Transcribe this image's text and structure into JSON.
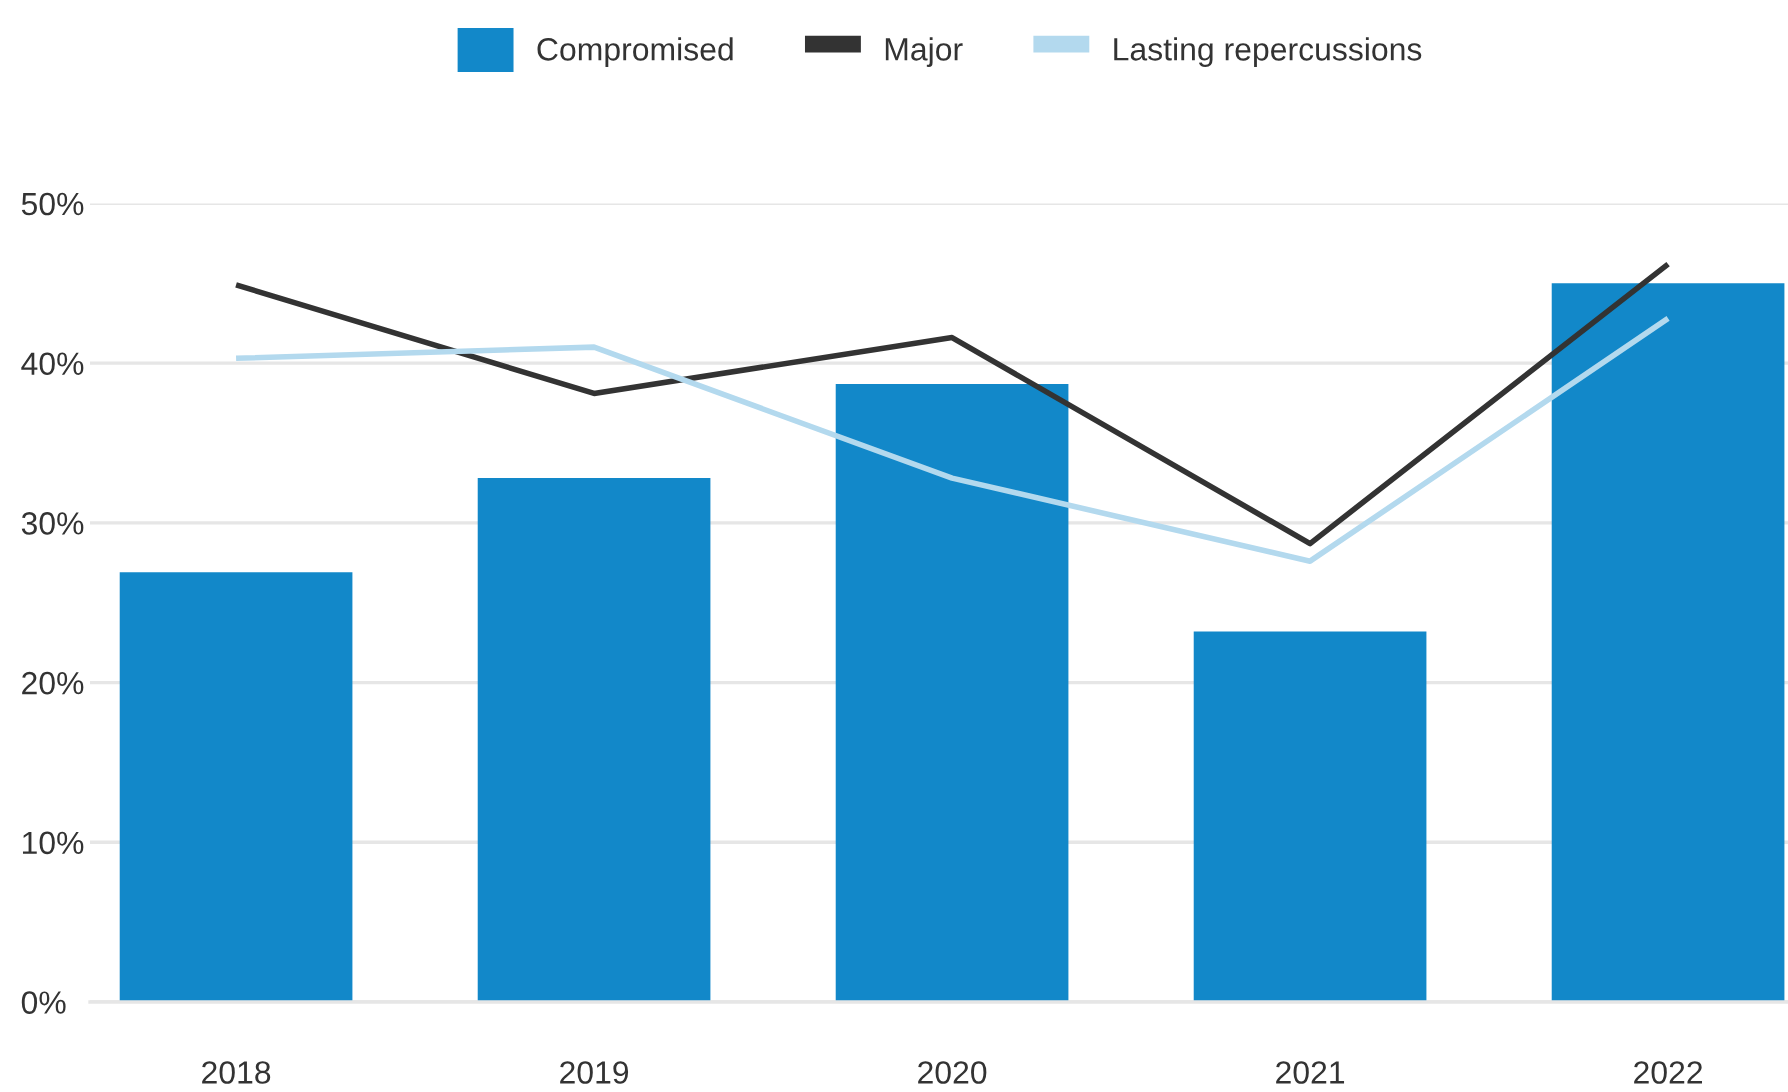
{
  "chart_data": {
    "type": "bar",
    "categories": [
      "2018",
      "2019",
      "2020",
      "2021",
      "2022"
    ],
    "series": [
      {
        "name": "Compromised",
        "color": "#1288c9",
        "values": [
          26.9,
          32.8,
          38.7,
          23.2,
          45.0
        ]
      },
      {
        "name": "Major",
        "type": "line",
        "color": "#333333",
        "values": [
          44.9,
          38.1,
          41.6,
          28.7,
          46.2
        ]
      },
      {
        "name": "Lasting repercussions",
        "type": "line",
        "color": "#b3d9ee",
        "values": [
          40.3,
          41.0,
          32.8,
          27.6,
          42.8
        ]
      }
    ],
    "ylim": [
      0,
      50
    ],
    "yticks": [
      {
        "value": 0,
        "label": "0%"
      },
      {
        "value": 10,
        "label": "10%"
      },
      {
        "value": 20,
        "label": "20%"
      },
      {
        "value": 30,
        "label": "30%"
      },
      {
        "value": 40,
        "label": "40%"
      },
      {
        "value": 50,
        "label": "50%"
      }
    ],
    "grid": "y",
    "legend": "top",
    "line_style": "solid"
  }
}
